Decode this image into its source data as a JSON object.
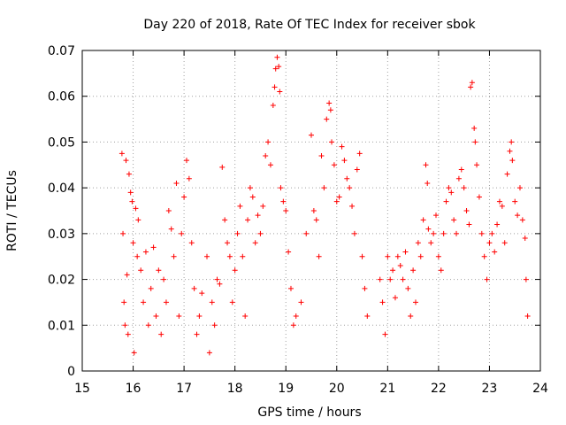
{
  "chart_data": {
    "type": "scatter",
    "title": "Day 220 of 2018, Rate Of TEC Index for receiver sbok",
    "xlabel": "GPS time / hours",
    "ylabel": "ROTI / TECUs",
    "xlim": [
      15,
      24
    ],
    "ylim": [
      0,
      0.07
    ],
    "x_ticks": [
      "15",
      "16",
      "17",
      "18",
      "19",
      "20",
      "21",
      "22",
      "23",
      "24"
    ],
    "y_ticks": [
      "0",
      "0.01",
      "0.02",
      "0.03",
      "0.04",
      "0.05",
      "0.06",
      "0.07"
    ],
    "grid": true,
    "marker": "+",
    "color": "#ff0000",
    "series": [
      {
        "name": "ROTI",
        "points": [
          [
            15.78,
            0.0475
          ],
          [
            15.8,
            0.03
          ],
          [
            15.82,
            0.015
          ],
          [
            15.84,
            0.01
          ],
          [
            15.86,
            0.046
          ],
          [
            15.88,
            0.021
          ],
          [
            15.9,
            0.008
          ],
          [
            15.92,
            0.043
          ],
          [
            15.95,
            0.039
          ],
          [
            15.98,
            0.037
          ],
          [
            16.0,
            0.028
          ],
          [
            16.02,
            0.004
          ],
          [
            16.05,
            0.0355
          ],
          [
            16.08,
            0.025
          ],
          [
            16.1,
            0.033
          ],
          [
            16.15,
            0.022
          ],
          [
            16.2,
            0.015
          ],
          [
            16.25,
            0.026
          ],
          [
            16.3,
            0.01
          ],
          [
            16.35,
            0.018
          ],
          [
            16.4,
            0.027
          ],
          [
            16.45,
            0.012
          ],
          [
            16.5,
            0.022
          ],
          [
            16.55,
            0.008
          ],
          [
            16.6,
            0.02
          ],
          [
            16.65,
            0.015
          ],
          [
            16.7,
            0.035
          ],
          [
            16.75,
            0.031
          ],
          [
            16.8,
            0.025
          ],
          [
            16.85,
            0.041
          ],
          [
            16.9,
            0.012
          ],
          [
            16.95,
            0.03
          ],
          [
            17.0,
            0.038
          ],
          [
            17.05,
            0.046
          ],
          [
            17.1,
            0.042
          ],
          [
            17.15,
            0.028
          ],
          [
            17.2,
            0.018
          ],
          [
            17.25,
            0.008
          ],
          [
            17.3,
            0.012
          ],
          [
            17.35,
            0.017
          ],
          [
            17.45,
            0.025
          ],
          [
            17.5,
            0.004
          ],
          [
            17.55,
            0.015
          ],
          [
            17.6,
            0.01
          ],
          [
            17.65,
            0.02
          ],
          [
            17.7,
            0.019
          ],
          [
            17.75,
            0.0445
          ],
          [
            17.8,
            0.033
          ],
          [
            17.85,
            0.028
          ],
          [
            17.9,
            0.025
          ],
          [
            17.95,
            0.015
          ],
          [
            18.0,
            0.022
          ],
          [
            18.05,
            0.03
          ],
          [
            18.1,
            0.036
          ],
          [
            18.15,
            0.025
          ],
          [
            18.2,
            0.012
          ],
          [
            18.25,
            0.033
          ],
          [
            18.3,
            0.04
          ],
          [
            18.35,
            0.038
          ],
          [
            18.4,
            0.028
          ],
          [
            18.45,
            0.034
          ],
          [
            18.5,
            0.03
          ],
          [
            18.55,
            0.036
          ],
          [
            18.6,
            0.047
          ],
          [
            18.65,
            0.05
          ],
          [
            18.7,
            0.045
          ],
          [
            18.75,
            0.058
          ],
          [
            18.78,
            0.062
          ],
          [
            18.8,
            0.066
          ],
          [
            18.83,
            0.0685
          ],
          [
            18.86,
            0.0665
          ],
          [
            18.88,
            0.061
          ],
          [
            18.9,
            0.04
          ],
          [
            18.95,
            0.037
          ],
          [
            19.0,
            0.035
          ],
          [
            19.05,
            0.026
          ],
          [
            19.1,
            0.018
          ],
          [
            19.15,
            0.01
          ],
          [
            19.2,
            0.012
          ],
          [
            19.3,
            0.015
          ],
          [
            19.4,
            0.03
          ],
          [
            19.5,
            0.0515
          ],
          [
            19.55,
            0.035
          ],
          [
            19.6,
            0.033
          ],
          [
            19.65,
            0.025
          ],
          [
            19.7,
            0.047
          ],
          [
            19.75,
            0.04
          ],
          [
            19.8,
            0.055
          ],
          [
            19.85,
            0.0585
          ],
          [
            19.88,
            0.057
          ],
          [
            19.9,
            0.05
          ],
          [
            19.95,
            0.045
          ],
          [
            20.0,
            0.037
          ],
          [
            20.05,
            0.038
          ],
          [
            20.1,
            0.049
          ],
          [
            20.15,
            0.046
          ],
          [
            20.2,
            0.042
          ],
          [
            20.25,
            0.04
          ],
          [
            20.3,
            0.036
          ],
          [
            20.35,
            0.03
          ],
          [
            20.4,
            0.044
          ],
          [
            20.45,
            0.0475
          ],
          [
            20.5,
            0.025
          ],
          [
            20.55,
            0.018
          ],
          [
            20.6,
            0.012
          ],
          [
            20.85,
            0.02
          ],
          [
            20.9,
            0.015
          ],
          [
            20.95,
            0.008
          ],
          [
            21.0,
            0.025
          ],
          [
            21.05,
            0.02
          ],
          [
            21.1,
            0.022
          ],
          [
            21.15,
            0.016
          ],
          [
            21.2,
            0.025
          ],
          [
            21.25,
            0.023
          ],
          [
            21.3,
            0.02
          ],
          [
            21.35,
            0.026
          ],
          [
            21.4,
            0.018
          ],
          [
            21.45,
            0.012
          ],
          [
            21.5,
            0.022
          ],
          [
            21.55,
            0.015
          ],
          [
            21.6,
            0.028
          ],
          [
            21.65,
            0.025
          ],
          [
            21.7,
            0.033
          ],
          [
            21.75,
            0.045
          ],
          [
            21.78,
            0.041
          ],
          [
            21.8,
            0.031
          ],
          [
            21.85,
            0.028
          ],
          [
            21.9,
            0.03
          ],
          [
            21.95,
            0.034
          ],
          [
            22.0,
            0.025
          ],
          [
            22.05,
            0.022
          ],
          [
            22.1,
            0.03
          ],
          [
            22.15,
            0.037
          ],
          [
            22.2,
            0.04
          ],
          [
            22.25,
            0.039
          ],
          [
            22.3,
            0.033
          ],
          [
            22.35,
            0.03
          ],
          [
            22.4,
            0.042
          ],
          [
            22.45,
            0.044
          ],
          [
            22.5,
            0.04
          ],
          [
            22.55,
            0.035
          ],
          [
            22.6,
            0.032
          ],
          [
            22.63,
            0.062
          ],
          [
            22.66,
            0.063
          ],
          [
            22.7,
            0.053
          ],
          [
            22.72,
            0.05
          ],
          [
            22.75,
            0.045
          ],
          [
            22.8,
            0.038
          ],
          [
            22.85,
            0.03
          ],
          [
            22.9,
            0.025
          ],
          [
            22.95,
            0.02
          ],
          [
            23.0,
            0.028
          ],
          [
            23.05,
            0.03
          ],
          [
            23.1,
            0.026
          ],
          [
            23.15,
            0.032
          ],
          [
            23.2,
            0.037
          ],
          [
            23.25,
            0.036
          ],
          [
            23.3,
            0.028
          ],
          [
            23.35,
            0.043
          ],
          [
            23.4,
            0.048
          ],
          [
            23.43,
            0.05
          ],
          [
            23.45,
            0.046
          ],
          [
            23.5,
            0.037
          ],
          [
            23.55,
            0.034
          ],
          [
            23.6,
            0.04
          ],
          [
            23.65,
            0.033
          ],
          [
            23.7,
            0.029
          ],
          [
            23.72,
            0.02
          ],
          [
            23.75,
            0.012
          ]
        ]
      }
    ]
  }
}
